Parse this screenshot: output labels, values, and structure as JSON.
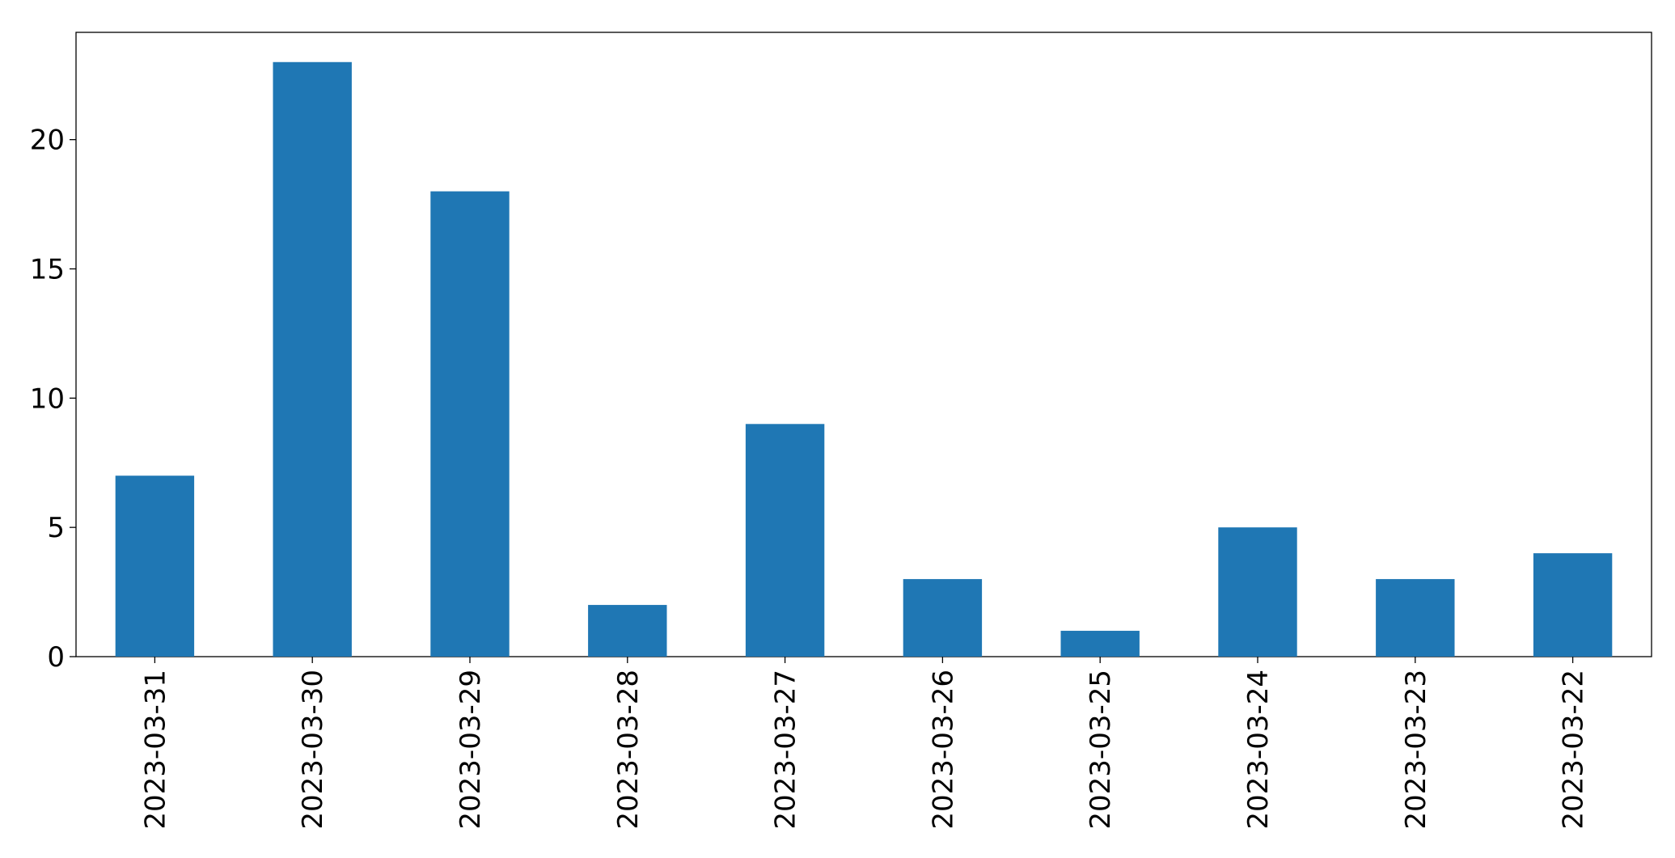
{
  "chart_data": {
    "type": "bar",
    "categories": [
      "2023-03-31",
      "2023-03-30",
      "2023-03-29",
      "2023-03-28",
      "2023-03-27",
      "2023-03-26",
      "2023-03-25",
      "2023-03-24",
      "2023-03-23",
      "2023-03-22"
    ],
    "values": [
      7,
      23,
      18,
      2,
      9,
      3,
      1,
      5,
      3,
      4
    ],
    "color": "#1f77b4",
    "ylim": [
      0,
      24.15
    ],
    "yticks": [
      0,
      5,
      10,
      15,
      20
    ],
    "grid": false
  }
}
